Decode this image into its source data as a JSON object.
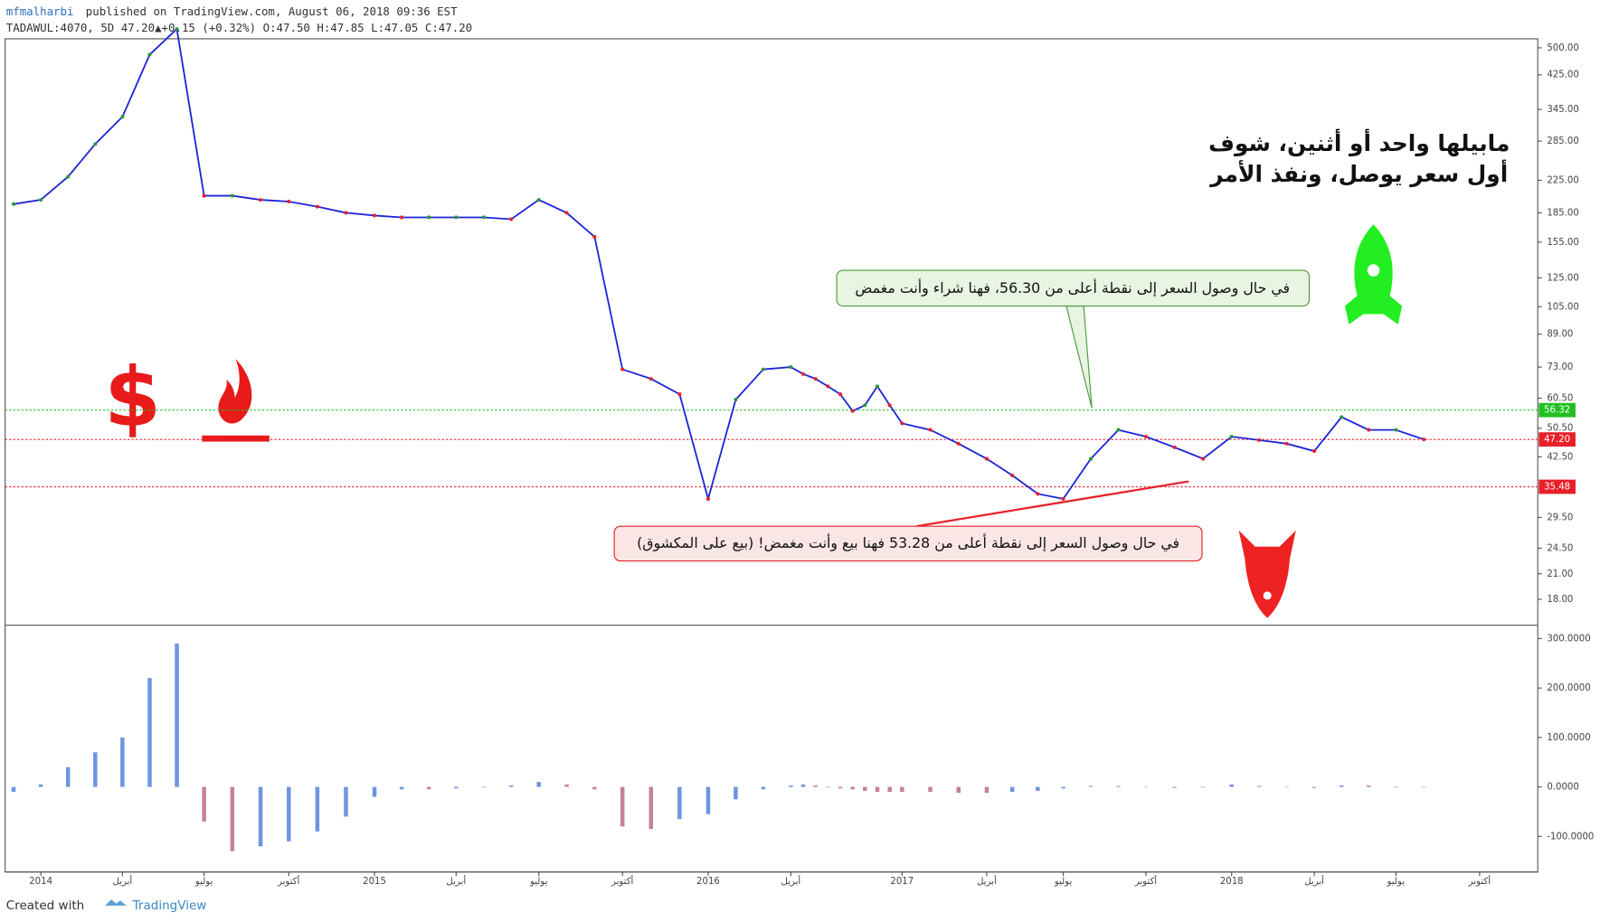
{
  "header": {
    "author": "mfmalharbi",
    "published": "published on TradingView.com, August 06, 2018 09:36 EST",
    "symbol_line": "TADAWUL:4070, 5D 47.20▲+0.15 (+0.32%) O:47.50 H:47.85 L:47.05 C:47.20"
  },
  "footer": {
    "created": "Created with",
    "brand": "TradingView"
  },
  "chart_data": [
    {
      "type": "line",
      "log_scale": true,
      "grid": false,
      "x": [
        "2013-12",
        "2014-01",
        "2014-02",
        "2014-03",
        "2014-04",
        "2014-05",
        "2014-06",
        "2014-07",
        "2014-08",
        "2014-09",
        "2014-10",
        "2014-11",
        "2014-12",
        "2015-01",
        "2015-02",
        "2015-03",
        "2015-04",
        "2015-05",
        "2015-06",
        "2015-07",
        "2015-08",
        "2015-09",
        "2015-10",
        "2015-11",
        "2015-12",
        "2016-01",
        "2016-02",
        "2016-03",
        "2016-04",
        "2016-05",
        "2016-06",
        "2016-07",
        "2016-08",
        "2016-09",
        "2016-10",
        "2016-11",
        "2016-12",
        "2017-01",
        "2017-02",
        "2017-03",
        "2017-04",
        "2017-05",
        "2017-06",
        "2017-07",
        "2017-08",
        "2017-09",
        "2017-10",
        "2017-11",
        "2017-12",
        "2018-01",
        "2018-02",
        "2018-03",
        "2018-04",
        "2018-05",
        "2018-06",
        "2018-07",
        "2018-08"
      ],
      "series": [
        {
          "color": "#1c24d8",
          "values": [
            195,
            200,
            230,
            280,
            330,
            480,
            560,
            205,
            205,
            200,
            198,
            192,
            185,
            182,
            180,
            180,
            180,
            180,
            178,
            200,
            185,
            160,
            72,
            68,
            62,
            33,
            60,
            72,
            73,
            70,
            68,
            65,
            62,
            56,
            58,
            65,
            58,
            52,
            50,
            46,
            42,
            38,
            34,
            33,
            42,
            50,
            48,
            45,
            42,
            48,
            47,
            46,
            44,
            54,
            50,
            50,
            47.2
          ]
        }
      ],
      "ylim": [
        15.5,
        528
      ],
      "yticks": [
        {
          "value": 500,
          "label": "500.00"
        },
        {
          "value": 425,
          "label": "425.00"
        },
        {
          "value": 345,
          "label": "345.00"
        },
        {
          "value": 285,
          "label": "285.00"
        },
        {
          "value": 225,
          "label": "225.00"
        },
        {
          "value": 185,
          "label": "185.00"
        },
        {
          "value": 155,
          "label": "155.00"
        },
        {
          "value": 125,
          "label": "125.00"
        },
        {
          "value": 105,
          "label": "105.00"
        },
        {
          "value": 89,
          "label": "89.00"
        },
        {
          "value": 73,
          "label": "73.00"
        },
        {
          "value": 60.5,
          "label": "60.50"
        },
        {
          "value": 50.5,
          "label": "50.50"
        },
        {
          "value": 42.5,
          "label": "42.50"
        },
        {
          "value": 29.5,
          "label": "29.50"
        },
        {
          "value": 24.5,
          "label": "24.50"
        },
        {
          "value": 21,
          "label": "21.00"
        },
        {
          "value": 18,
          "label": "18.00"
        }
      ],
      "xticks": [
        {
          "value": "2014-01",
          "label": "2014"
        },
        {
          "value": "2014-04",
          "label": "أبريل"
        },
        {
          "value": "2014-07",
          "label": "يوليو"
        },
        {
          "value": "2014-10",
          "label": "أكتوبر"
        },
        {
          "value": "2015-01",
          "label": "2015"
        },
        {
          "value": "2015-04",
          "label": "أبريل"
        },
        {
          "value": "2015-07",
          "label": "يوليو"
        },
        {
          "value": "2015-10",
          "label": "أكتوبر"
        },
        {
          "value": "2016-01",
          "label": "2016"
        },
        {
          "value": "2016-04",
          "label": "أبريل"
        },
        {
          "value": "2017-01",
          "label": "2017"
        },
        {
          "value": "2017-04",
          "label": "أبريل"
        },
        {
          "value": "2017-07",
          "label": "يوليو"
        },
        {
          "value": "2017-10",
          "label": "أكتوبر"
        },
        {
          "value": "2018-01",
          "label": "2018"
        },
        {
          "value": "2018-04",
          "label": "أبريل"
        },
        {
          "value": "2018-07",
          "label": "يوليو"
        },
        {
          "value": "2018-10",
          "label": "أكتوبر"
        }
      ],
      "price_lines": [
        {
          "value": 56.32,
          "label": "56.32",
          "color": "#22c022"
        },
        {
          "value": 47.2,
          "label": "47.20",
          "color": "#e8202a"
        },
        {
          "value": 35.48,
          "label": "35.48",
          "color": "#e8202a"
        }
      ],
      "annotations": {
        "headline": [
          "مابيلها واحد أو أثنين، شوف",
          "أول سعر يوصل، ونفذ الأمر"
        ],
        "buy": "في حال وصول السعر إلى نقطة أعلى من 56.30، فهنا شراء وأنت مغمض",
        "sell": "في حال وصول السعر إلى نقطة أعلى من 53.28 فهنا بيع وأنت مغمض! (بيع على المكشوق)"
      }
    },
    {
      "type": "bar",
      "grid": false,
      "up_color": "#6f95e0",
      "down_color": "#c7809a",
      "values": [
        -10,
        5,
        40,
        70,
        100,
        220,
        290,
        -70,
        -130,
        -120,
        -110,
        -90,
        -60,
        -20,
        -5,
        -5,
        -3,
        0,
        3,
        10,
        5,
        -5,
        -80,
        -85,
        -65,
        -55,
        -25,
        -5,
        3,
        5,
        3,
        0,
        -3,
        -5,
        -8,
        -10,
        -10,
        -10,
        -10,
        -12,
        -12,
        -10,
        -8,
        -3,
        2,
        2,
        0,
        -2,
        0,
        5,
        2,
        0,
        -2,
        3,
        3,
        0,
        0
      ],
      "ylim": [
        -172,
        325
      ],
      "yticks": [
        {
          "value": 300,
          "label": "300.0000"
        },
        {
          "value": 200,
          "label": "200.0000"
        },
        {
          "value": 100,
          "label": "100.0000"
        },
        {
          "value": 0,
          "label": "0.0000"
        },
        {
          "value": -100,
          "label": "-100.0000"
        }
      ]
    }
  ]
}
